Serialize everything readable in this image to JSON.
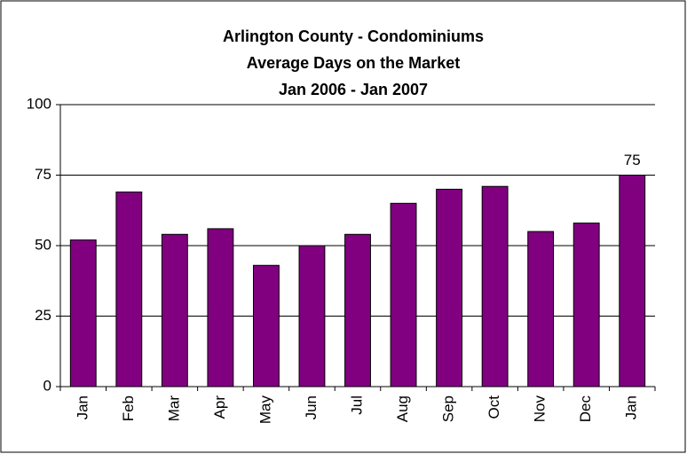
{
  "chart_data": {
    "type": "bar",
    "title": [
      "Arlington County - Condominiums",
      "Average Days on the Market",
      "Jan 2006 - Jan 2007"
    ],
    "categories": [
      "Jan",
      "Feb",
      "Mar",
      "Apr",
      "May",
      "Jun",
      "Jul",
      "Aug",
      "Sep",
      "Oct",
      "Nov",
      "Dec",
      "Jan"
    ],
    "values": [
      52,
      69,
      54,
      56,
      43,
      50,
      54,
      65,
      70,
      71,
      55,
      58,
      75
    ],
    "value_labels": [
      null,
      null,
      null,
      null,
      null,
      null,
      null,
      null,
      null,
      null,
      null,
      null,
      "75"
    ],
    "color": "#800080",
    "ylim": [
      0,
      100
    ],
    "yticks": [
      0,
      25,
      50,
      75,
      100
    ],
    "grid": true
  }
}
